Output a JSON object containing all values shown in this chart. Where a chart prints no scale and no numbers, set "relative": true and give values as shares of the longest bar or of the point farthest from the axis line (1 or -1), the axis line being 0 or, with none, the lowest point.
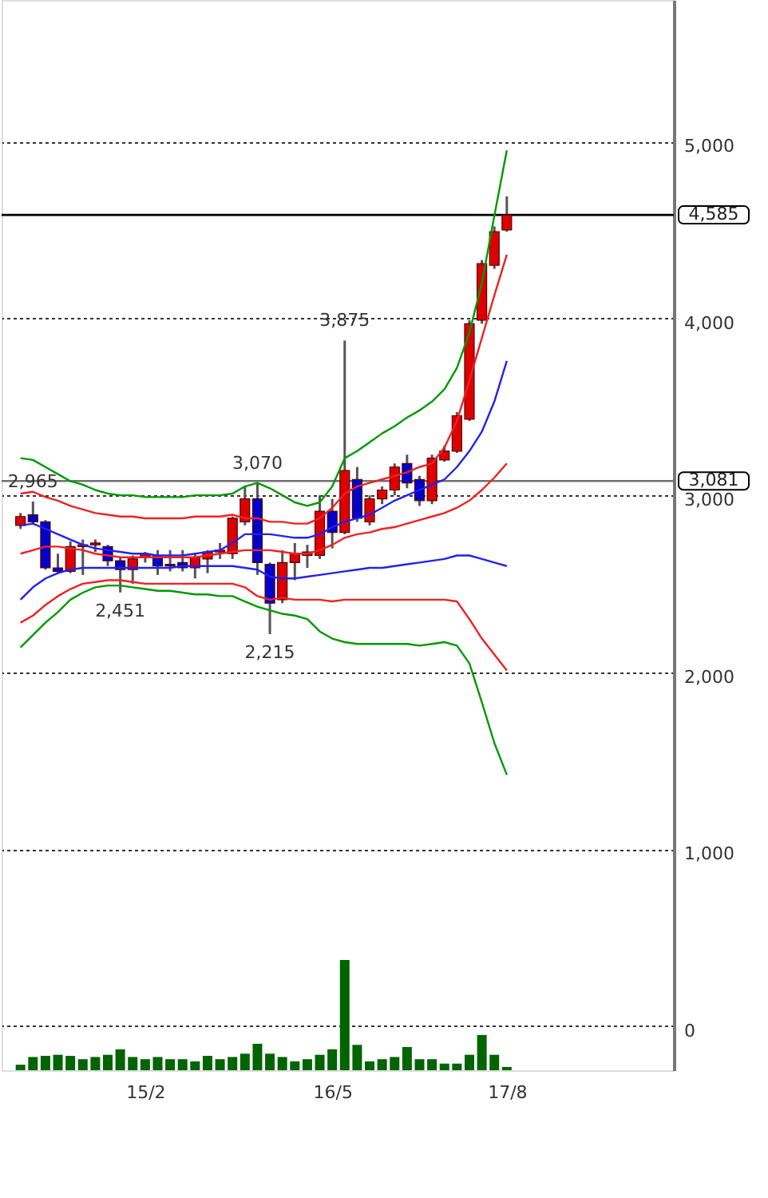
{
  "chart_data": [
    {
      "type": "candlestick",
      "categories": [
        null,
        null,
        null,
        null,
        null,
        null,
        null,
        null,
        null,
        null,
        "15/2",
        null,
        null,
        null,
        null,
        null,
        null,
        null,
        null,
        null,
        null,
        null,
        null,
        null,
        null,
        "16/5",
        null,
        null,
        null,
        null,
        null,
        null,
        null,
        null,
        null,
        null,
        null,
        null,
        null,
        "17/8"
      ],
      "ohlc": [
        [
          2830,
          2900,
          2810,
          2880
        ],
        [
          2890,
          2965,
          2840,
          2850
        ],
        [
          2850,
          2860,
          2580,
          2590
        ],
        [
          2590,
          2670,
          2560,
          2570
        ],
        [
          2570,
          2740,
          2560,
          2710
        ],
        [
          2710,
          2750,
          2550,
          2720
        ],
        [
          2720,
          2750,
          2680,
          2730
        ],
        [
          2710,
          2720,
          2600,
          2630
        ],
        [
          2630,
          2650,
          2451,
          2580
        ],
        [
          2580,
          2660,
          2500,
          2640
        ],
        [
          2650,
          2680,
          2620,
          2670
        ],
        [
          2660,
          2690,
          2550,
          2600
        ],
        [
          2610,
          2690,
          2570,
          2600
        ],
        [
          2620,
          2690,
          2570,
          2590
        ],
        [
          2590,
          2670,
          2530,
          2650
        ],
        [
          2640,
          2690,
          2560,
          2680
        ],
        [
          2680,
          2730,
          2640,
          2690
        ],
        [
          2670,
          2880,
          2640,
          2870
        ],
        [
          2850,
          3050,
          2830,
          2980
        ],
        [
          2980,
          3070,
          2550,
          2620
        ],
        [
          2610,
          2620,
          2215,
          2390
        ],
        [
          2410,
          2690,
          2390,
          2620
        ],
        [
          2620,
          2730,
          2520,
          2670
        ],
        [
          2660,
          2720,
          2590,
          2680
        ],
        [
          2660,
          3000,
          2640,
          2910
        ],
        [
          2910,
          2980,
          2700,
          2790
        ],
        [
          2790,
          3875,
          2780,
          3140
        ],
        [
          3090,
          3160,
          2850,
          2870
        ],
        [
          2850,
          3000,
          2830,
          2980
        ],
        [
          2980,
          3050,
          2950,
          3030
        ],
        [
          3030,
          3180,
          3000,
          3160
        ],
        [
          3180,
          3230,
          3040,
          3070
        ],
        [
          3090,
          3110,
          2940,
          2970
        ],
        [
          2970,
          3230,
          2950,
          3210
        ],
        [
          3200,
          3280,
          3190,
          3250
        ],
        [
          3250,
          3470,
          3240,
          3450
        ],
        [
          3430,
          3990,
          3420,
          3970
        ],
        [
          3990,
          4330,
          3970,
          4310
        ],
        [
          4300,
          4520,
          4280,
          4490
        ],
        [
          4500,
          4690,
          4490,
          4585
        ]
      ],
      "colors": [
        "#dd0000",
        "#0000cc",
        "#0000cc",
        "#0000cc",
        "#dd0000",
        "#dd0000",
        "#dd0000",
        "#0000cc",
        "#0000cc",
        "#dd0000",
        "#dd0000",
        "#0000cc",
        "#0000cc",
        "#0000cc",
        "#dd0000",
        "#dd0000",
        "#dd0000",
        "#dd0000",
        "#dd0000",
        "#0000cc",
        "#0000cc",
        "#dd0000",
        "#dd0000",
        "#dd0000",
        "#dd0000",
        "#0000cc",
        "#dd0000",
        "#0000cc",
        "#dd0000",
        "#dd0000",
        "#dd0000",
        "#0000cc",
        "#0000cc",
        "#dd0000",
        "#dd0000",
        "#dd0000",
        "#dd0000",
        "#dd0000",
        "#dd0000",
        "#dd0000"
      ],
      "series": [
        {
          "type": "line",
          "color": "#009900",
          "values": [
            3210,
            3200,
            3160,
            3120,
            3080,
            3060,
            3030,
            3010,
            3000,
            3000,
            2990,
            2990,
            2990,
            2990,
            3000,
            3000,
            3000,
            3010,
            3050,
            3070,
            3040,
            3000,
            2960,
            2940,
            2960,
            3050,
            3210,
            3250,
            3300,
            3350,
            3390,
            3440,
            3480,
            3530,
            3600,
            3720,
            3920,
            4200,
            4580,
            4950
          ]
        },
        {
          "type": "line",
          "color": "#ee2222",
          "values": [
            3010,
            3020,
            2990,
            2970,
            2940,
            2920,
            2900,
            2890,
            2880,
            2880,
            2870,
            2870,
            2870,
            2870,
            2880,
            2880,
            2880,
            2890,
            2870,
            2870,
            2850,
            2850,
            2840,
            2840,
            2870,
            2930,
            3010,
            3050,
            3070,
            3090,
            3110,
            3130,
            3160,
            3180,
            3270,
            3420,
            3650,
            3890,
            4130,
            4360
          ]
        },
        {
          "type": "line",
          "color": "#2222ee",
          "values": [
            2830,
            2840,
            2810,
            2780,
            2750,
            2720,
            2700,
            2690,
            2680,
            2670,
            2670,
            2660,
            2660,
            2660,
            2670,
            2680,
            2690,
            2730,
            2780,
            2780,
            2780,
            2770,
            2760,
            2760,
            2780,
            2820,
            2850,
            2870,
            2890,
            2930,
            2970,
            3000,
            3030,
            3060,
            3090,
            3160,
            3250,
            3360,
            3530,
            3760
          ]
        },
        {
          "type": "line",
          "color": "#ee2222",
          "values": [
            2670,
            2690,
            2710,
            2710,
            2700,
            2690,
            2670,
            2660,
            2650,
            2650,
            2650,
            2650,
            2650,
            2650,
            2650,
            2660,
            2670,
            2680,
            2690,
            2690,
            2690,
            2680,
            2670,
            2670,
            2690,
            2720,
            2760,
            2780,
            2790,
            2810,
            2820,
            2840,
            2860,
            2880,
            2900,
            2930,
            2970,
            3030,
            3100,
            3180
          ]
        },
        {
          "type": "line",
          "color": "#2222ee",
          "values": [
            2410,
            2480,
            2530,
            2560,
            2580,
            2590,
            2590,
            2590,
            2590,
            2590,
            2590,
            2590,
            2590,
            2600,
            2600,
            2600,
            2600,
            2600,
            2590,
            2580,
            2540,
            2530,
            2530,
            2540,
            2550,
            2560,
            2570,
            2580,
            2590,
            2590,
            2600,
            2610,
            2620,
            2630,
            2640,
            2660,
            2660,
            2640,
            2620,
            2600
          ]
        },
        {
          "type": "line",
          "color": "#ee2222",
          "values": [
            2280,
            2320,
            2380,
            2430,
            2470,
            2500,
            2510,
            2520,
            2520,
            2510,
            2500,
            2500,
            2500,
            2500,
            2500,
            2500,
            2500,
            2500,
            2480,
            2430,
            2410,
            2420,
            2410,
            2410,
            2410,
            2400,
            2410,
            2410,
            2410,
            2410,
            2410,
            2410,
            2410,
            2410,
            2410,
            2400,
            2300,
            2190,
            2100,
            2010
          ]
        },
        {
          "type": "line",
          "color": "#009900",
          "values": [
            2140,
            2210,
            2280,
            2340,
            2410,
            2450,
            2480,
            2490,
            2490,
            2480,
            2470,
            2460,
            2460,
            2450,
            2440,
            2440,
            2430,
            2430,
            2400,
            2370,
            2350,
            2330,
            2320,
            2300,
            2230,
            2190,
            2170,
            2160,
            2160,
            2160,
            2160,
            2160,
            2150,
            2160,
            2170,
            2150,
            2050,
            1830,
            1600,
            1420
          ]
        }
      ],
      "ylim": [
        -250,
        5800
      ],
      "yticks": [
        {
          "value": 0,
          "label": "0"
        },
        {
          "value": 1000,
          "label": "1,000"
        },
        {
          "value": 2000,
          "label": "2,000"
        },
        {
          "value": 3000,
          "label": "3,000"
        },
        {
          "value": 4000,
          "label": "4,000"
        },
        {
          "value": 5000,
          "label": "5,000"
        }
      ],
      "grid": "y",
      "ref_lines": [
        {
          "axis": "y",
          "value": 4585,
          "label": "4,585",
          "color": "#000000"
        },
        {
          "axis": "y",
          "value": 3081,
          "label": "3,081",
          "color": "#707070"
        }
      ],
      "annotations": [
        {
          "text": "2,965",
          "y": 2965
        },
        {
          "text": "3,070",
          "y": 3070
        },
        {
          "text": "3,875",
          "y": 3875
        },
        {
          "text": "2,451",
          "y": 2451
        },
        {
          "text": "2,215",
          "y": 2215
        }
      ]
    },
    {
      "type": "bar",
      "relative": true,
      "color": "#006400",
      "categories": [
        null,
        null,
        null,
        null,
        null,
        null,
        null,
        null,
        null,
        null,
        null,
        null,
        null,
        null,
        null,
        null,
        null,
        null,
        null,
        null,
        null,
        null,
        null,
        null,
        null,
        null,
        null,
        null,
        null,
        null,
        null,
        null,
        null,
        null,
        null,
        null,
        null,
        null,
        null,
        null
      ],
      "values": [
        0.05,
        0.12,
        0.13,
        0.14,
        0.13,
        0.1,
        0.12,
        0.14,
        0.19,
        0.12,
        0.1,
        0.12,
        0.1,
        0.1,
        0.08,
        0.13,
        0.1,
        0.12,
        0.15,
        0.24,
        0.15,
        0.12,
        0.08,
        0.1,
        0.14,
        0.19,
        1,
        0.23,
        0.08,
        0.1,
        0.12,
        0.21,
        0.1,
        0.1,
        0.06,
        0.06,
        0.14,
        0.32,
        0.14,
        0.03
      ]
    }
  ]
}
